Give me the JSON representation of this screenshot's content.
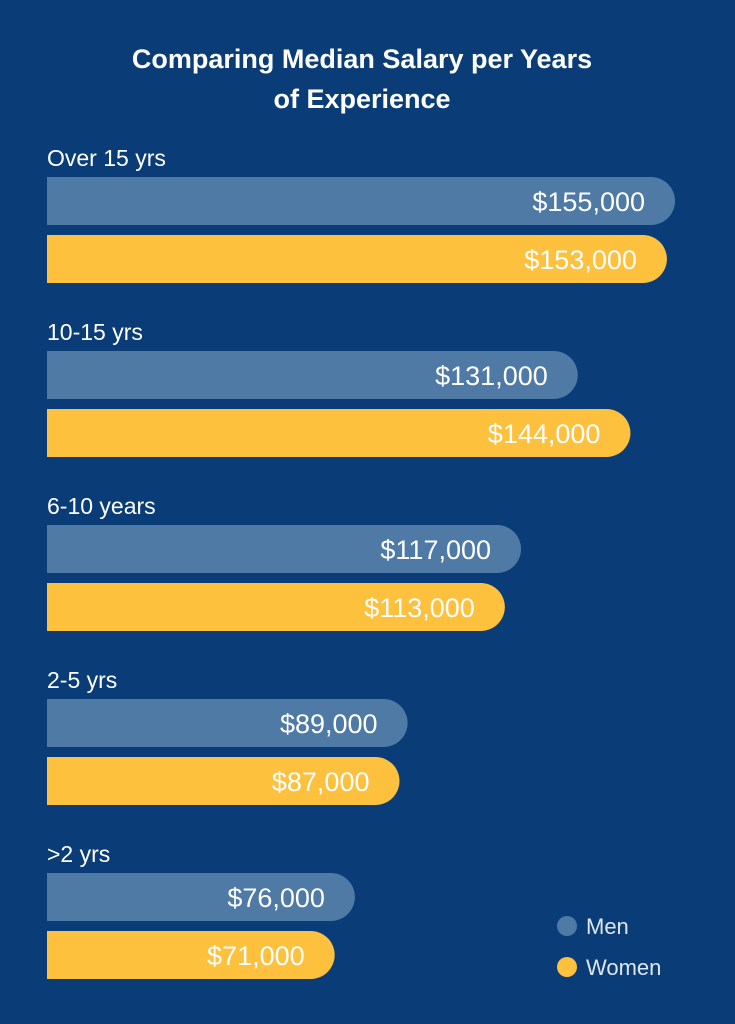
{
  "chart_data": {
    "type": "bar",
    "orientation": "horizontal",
    "title": "Comparing Median Salary per Years of Experience",
    "title_lines": [
      "Comparing Median Salary per Years",
      "of Experience"
    ],
    "categories": [
      "Over 15 yrs",
      "10-15 yrs",
      "6-10 years",
      "2-5 yrs",
      ">2 yrs"
    ],
    "series": [
      {
        "name": "Men",
        "color": "#4f7aa6",
        "values": [
          155000,
          131000,
          117000,
          89000,
          76000
        ],
        "labels": [
          "$155,000",
          "$131,000",
          "$117,000",
          "$89,000",
          "$76,000"
        ]
      },
      {
        "name": "Women",
        "color": "#fec13d",
        "values": [
          153000,
          144000,
          113000,
          87000,
          71000
        ],
        "labels": [
          "$153,000",
          "$144,000",
          "$113,000",
          "$87,000",
          "$71,000"
        ]
      }
    ],
    "legend_position": "bottom-right",
    "background": "#0a3d78",
    "grid": false
  }
}
